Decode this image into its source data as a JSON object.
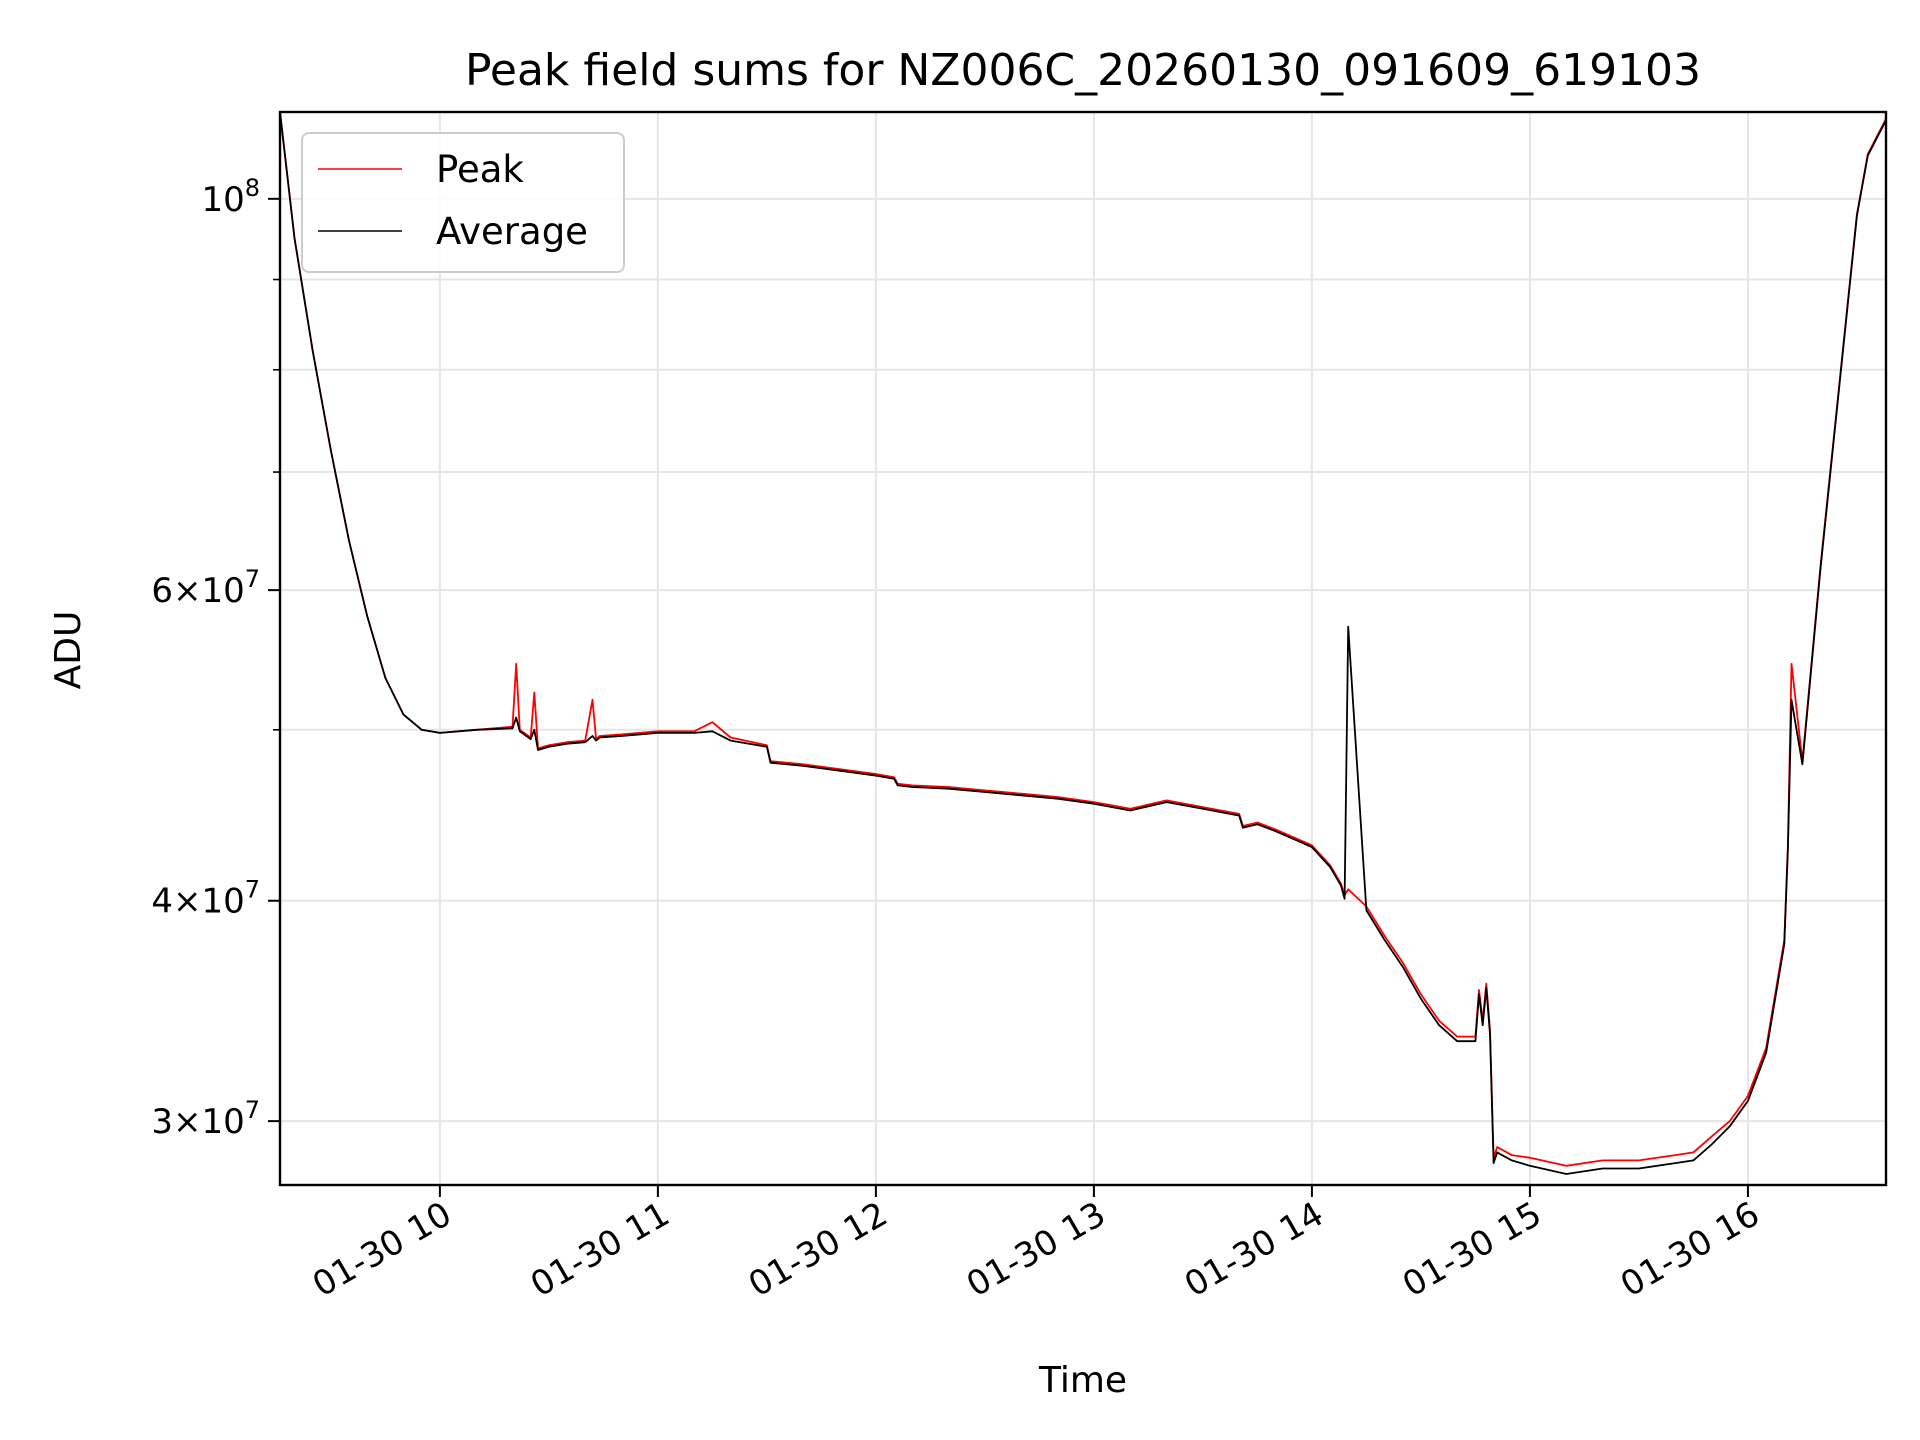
{
  "chart_data": {
    "type": "line",
    "title": "Peak field sums for NZ006C_20260130_091609_619103",
    "xlabel": "Time",
    "ylabel": "ADU",
    "yscale": "log",
    "ylim": [
      27600000,
      112000000
    ],
    "xlim": [
      "01-30 09:16",
      "01-30 16:38"
    ],
    "grid": true,
    "legend_position": "top-left",
    "x_ticks": [
      "01-30 10",
      "01-30 11",
      "01-30 12",
      "01-30 13",
      "01-30 14",
      "01-30 15",
      "01-30 16"
    ],
    "x_tick_values": [
      "10:00",
      "11:00",
      "12:00",
      "13:00",
      "14:00",
      "15:00",
      "16:00"
    ],
    "y_ticks": [
      {
        "value": 30000000,
        "mantissa": "3",
        "exponent": "7"
      },
      {
        "value": 40000000,
        "mantissa": "4",
        "exponent": "7"
      },
      {
        "value": 60000000,
        "mantissa": "6",
        "exponent": "7"
      },
      {
        "value": 100000000,
        "mantissa": "",
        "exponent": "8"
      }
    ],
    "y_minor_ticks": [
      50000000,
      70000000,
      80000000,
      90000000
    ],
    "series": [
      {
        "name": "Peak",
        "color": "#ff0000",
        "x": [
          "09:16",
          "09:20",
          "09:25",
          "09:30",
          "09:35",
          "09:40",
          "09:45",
          "09:50",
          "09:55",
          "10:00",
          "10:10",
          "10:20",
          "10:21",
          "10:22",
          "10:25",
          "10:26",
          "10:27",
          "10:30",
          "10:35",
          "10:40",
          "10:42",
          "10:43",
          "10:44",
          "10:50",
          "11:00",
          "11:10",
          "11:15",
          "11:20",
          "11:30",
          "11:31",
          "11:40",
          "11:50",
          "12:00",
          "12:05",
          "12:06",
          "12:10",
          "12:20",
          "12:30",
          "12:40",
          "12:50",
          "13:00",
          "13:05",
          "13:10",
          "13:20",
          "13:30",
          "13:40",
          "13:41",
          "13:45",
          "13:50",
          "14:00",
          "14:05",
          "14:08",
          "14:09",
          "14:10",
          "14:15",
          "14:20",
          "14:25",
          "14:30",
          "14:35",
          "14:40",
          "14:45",
          "14:46",
          "14:47",
          "14:48",
          "14:49",
          "14:50",
          "14:51",
          "14:55",
          "15:00",
          "15:10",
          "15:20",
          "15:30",
          "15:40",
          "15:45",
          "15:50",
          "15:55",
          "16:00",
          "16:05",
          "16:10",
          "16:11",
          "16:12",
          "16:15",
          "16:20",
          "16:25",
          "16:30",
          "16:33",
          "16:35",
          "16:38"
        ],
        "values": [
          112000000,
          95000000,
          82000000,
          72000000,
          64000000,
          58000000,
          53500000,
          51000000,
          50000000,
          49800000,
          50000000,
          50200000,
          54500000,
          50000000,
          49500000,
          52500000,
          48800000,
          49000000,
          49200000,
          49300000,
          52000000,
          49400000,
          49600000,
          49700000,
          49900000,
          49900000,
          50500000,
          49500000,
          49000000,
          48000000,
          47800000,
          47500000,
          47200000,
          47000000,
          46600000,
          46500000,
          46400000,
          46200000,
          46000000,
          45800000,
          45500000,
          45300000,
          45100000,
          45600000,
          45200000,
          44800000,
          44100000,
          44300000,
          43900000,
          43000000,
          41900000,
          40900000,
          40300000,
          40600000,
          39700000,
          38200000,
          36900000,
          35400000,
          34200000,
          33500000,
          33500000,
          35600000,
          34200000,
          35900000,
          33800000,
          28600000,
          29000000,
          28700000,
          28600000,
          28300000,
          28500000,
          28500000,
          28700000,
          28800000,
          29400000,
          30000000,
          31000000,
          33000000,
          38000000,
          43000000,
          54500000,
          48000000,
          62000000,
          78000000,
          98000000,
          106000000,
          108000000,
          111000000
        ]
      },
      {
        "name": "Average",
        "color": "#000000",
        "x": [
          "09:16",
          "09:20",
          "09:25",
          "09:30",
          "09:35",
          "09:40",
          "09:45",
          "09:50",
          "09:55",
          "10:00",
          "10:10",
          "10:20",
          "10:21",
          "10:22",
          "10:25",
          "10:26",
          "10:27",
          "10:30",
          "10:35",
          "10:40",
          "10:42",
          "10:43",
          "10:44",
          "10:50",
          "11:00",
          "11:10",
          "11:15",
          "11:20",
          "11:30",
          "11:31",
          "11:40",
          "11:50",
          "12:00",
          "12:05",
          "12:06",
          "12:10",
          "12:20",
          "12:30",
          "12:40",
          "12:50",
          "13:00",
          "13:05",
          "13:10",
          "13:20",
          "13:30",
          "13:40",
          "13:41",
          "13:45",
          "13:50",
          "14:00",
          "14:05",
          "14:08",
          "14:09",
          "14:10",
          "14:15",
          "14:20",
          "14:25",
          "14:30",
          "14:35",
          "14:40",
          "14:45",
          "14:46",
          "14:47",
          "14:48",
          "14:49",
          "14:50",
          "14:51",
          "14:55",
          "15:00",
          "15:10",
          "15:20",
          "15:30",
          "15:40",
          "15:45",
          "15:50",
          "15:55",
          "16:00",
          "16:05",
          "16:10",
          "16:11",
          "16:12",
          "16:15",
          "16:20",
          "16:25",
          "16:30",
          "16:33",
          "16:35",
          "16:38"
        ],
        "values": [
          112000000,
          95000000,
          82000000,
          72000000,
          64000000,
          58000000,
          53500000,
          51000000,
          50000000,
          49800000,
          50000000,
          50100000,
          50800000,
          49900000,
          49400000,
          50000000,
          48700000,
          48900000,
          49100000,
          49200000,
          49600000,
          49300000,
          49500000,
          49600000,
          49800000,
          49800000,
          49900000,
          49300000,
          48900000,
          47900000,
          47700000,
          47400000,
          47100000,
          46900000,
          46500000,
          46400000,
          46300000,
          46100000,
          45900000,
          45700000,
          45400000,
          45200000,
          45000000,
          45500000,
          45100000,
          44700000,
          44000000,
          44200000,
          43800000,
          42900000,
          41800000,
          40800000,
          40100000,
          57200000,
          39500000,
          38000000,
          36700000,
          35200000,
          34000000,
          33300000,
          33300000,
          35400000,
          34000000,
          35700000,
          33600000,
          28400000,
          28800000,
          28500000,
          28300000,
          28000000,
          28200000,
          28200000,
          28400000,
          28500000,
          29100000,
          29800000,
          30800000,
          32800000,
          37800000,
          42800000,
          52000000,
          47800000,
          61800000,
          77800000,
          97800000,
          105800000,
          107800000,
          110800000
        ]
      }
    ]
  }
}
